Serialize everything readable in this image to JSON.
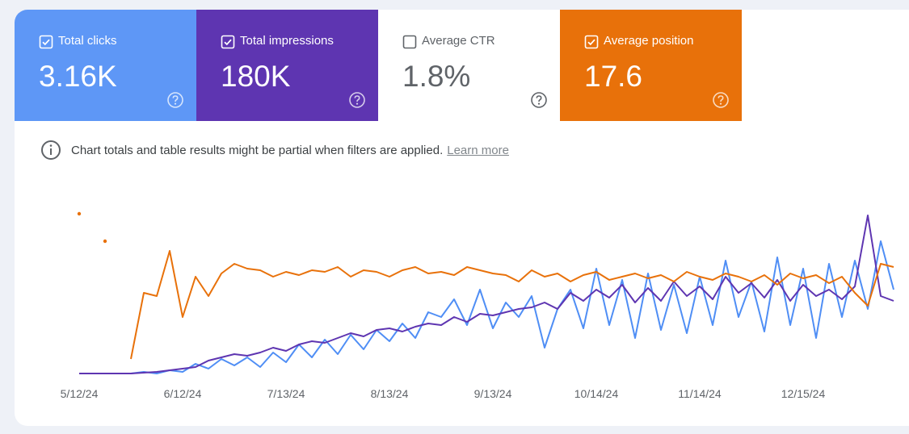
{
  "metric_cards": [
    {
      "label": "Total clicks",
      "value": "3.16K",
      "checked": true,
      "color": "#5e97f6"
    },
    {
      "label": "Total impressions",
      "value": "180K",
      "checked": true,
      "color": "#5e35b1"
    },
    {
      "label": "Average CTR",
      "value": "1.8%",
      "checked": false,
      "color": "#ffffff"
    },
    {
      "label": "Average position",
      "value": "17.6",
      "checked": true,
      "color": "#e8710a"
    }
  ],
  "notice": {
    "text": "Chart totals and table results might be partial when filters are applied.",
    "link": "Learn more"
  },
  "chart_data": {
    "type": "line",
    "ylim": [
      0,
      100
    ],
    "categories": [
      "5/12/24",
      null,
      null,
      null,
      null,
      null,
      null,
      null,
      "6/12/24",
      null,
      null,
      null,
      null,
      null,
      null,
      null,
      "7/13/24",
      null,
      null,
      null,
      null,
      null,
      null,
      null,
      "8/13/24",
      null,
      null,
      null,
      null,
      null,
      null,
      null,
      "9/13/24",
      null,
      null,
      null,
      null,
      null,
      null,
      null,
      "10/14/24",
      null,
      null,
      null,
      null,
      null,
      null,
      null,
      "11/14/24",
      null,
      null,
      null,
      null,
      null,
      null,
      null,
      "12/15/24",
      null,
      null,
      null,
      null,
      null,
      null,
      null
    ],
    "series": [
      {
        "color": "#4f8ef5",
        "values": [
          0,
          0,
          0,
          0,
          0,
          1,
          0,
          2,
          1,
          6,
          3,
          9,
          5,
          10,
          4,
          13,
          7,
          18,
          10,
          21,
          12,
          24,
          15,
          27,
          20,
          31,
          22,
          38,
          35,
          46,
          30,
          52,
          28,
          44,
          35,
          48,
          16,
          40,
          52,
          28,
          65,
          30,
          58,
          22,
          62,
          27,
          55,
          25,
          60,
          30,
          70,
          35,
          57,
          26,
          72,
          30,
          65,
          22,
          68,
          35,
          70,
          40,
          82,
          52
        ]
      },
      {
        "color": "#5e35b1",
        "values": [
          0,
          0,
          0,
          0,
          0,
          0.5,
          1,
          2,
          3,
          4,
          8,
          10,
          12,
          11,
          13,
          16,
          14,
          18,
          20,
          19,
          22,
          25,
          23,
          27,
          28,
          26,
          29,
          31,
          30,
          35,
          32,
          37,
          36,
          38,
          40,
          41,
          44,
          40,
          50,
          45,
          52,
          47,
          55,
          44,
          53,
          45,
          57,
          48,
          54,
          46,
          60,
          50,
          56,
          47,
          58,
          45,
          55,
          48,
          52,
          46,
          54,
          98,
          48,
          45
        ]
      },
      {
        "color": "#e8710a",
        "values": [
          99,
          null,
          82,
          null,
          9,
          50,
          48,
          76,
          35,
          60,
          48,
          62,
          68,
          65,
          64,
          60,
          63,
          61,
          64,
          63,
          66,
          60,
          64,
          63,
          60,
          64,
          66,
          62,
          63,
          61,
          66,
          64,
          62,
          61,
          57,
          64,
          60,
          62,
          57,
          61,
          63,
          58,
          60,
          62,
          59,
          61,
          57,
          63,
          60,
          58,
          62,
          60,
          57,
          61,
          55,
          62,
          59,
          61,
          56,
          60,
          50,
          42,
          68,
          66
        ]
      }
    ]
  }
}
